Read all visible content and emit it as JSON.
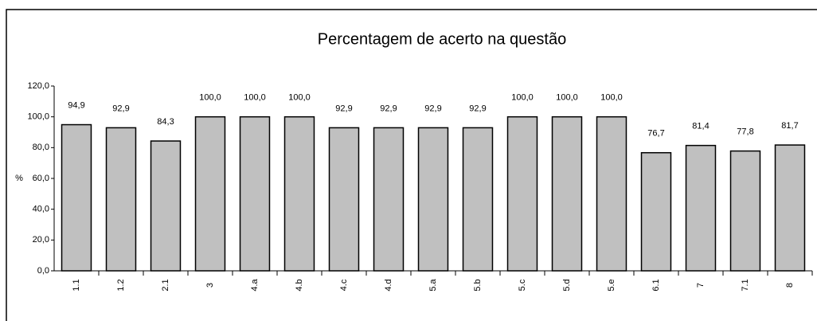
{
  "chart_data": {
    "type": "bar",
    "title": "Percentagem de acerto na questão",
    "ylabel": "%",
    "categories": [
      "1.1",
      "1.2",
      "2.1",
      "3",
      "4.a",
      "4.b",
      "4.c",
      "4.d",
      "5.a",
      "5.b",
      "5.c",
      "5.d",
      "5.e",
      "6.1",
      "7",
      "7.1",
      "8"
    ],
    "values": [
      94.9,
      92.9,
      84.3,
      100,
      100,
      100,
      92.9,
      92.9,
      92.9,
      92.9,
      100,
      100,
      100,
      76.7,
      81.4,
      77.8,
      81.7
    ],
    "value_labels": [
      "94,9",
      "92,9",
      "84,3",
      "100,0",
      "100,0",
      "100,0",
      "92,9",
      "92,9",
      "92,9",
      "92,9",
      "100,0",
      "100,0",
      "100,0",
      "76,7",
      "81,4",
      "77,8",
      "81,7"
    ],
    "color": "#c0c0c0",
    "ylim": [
      0,
      120
    ],
    "yticks": [
      {
        "value": 0,
        "label": "0,0"
      },
      {
        "value": 20,
        "label": "20,0"
      },
      {
        "value": 40,
        "label": "40,0"
      },
      {
        "value": 60,
        "label": "60,0"
      },
      {
        "value": 80,
        "label": "80,0"
      },
      {
        "value": 100,
        "label": "100,0"
      },
      {
        "value": 120,
        "label": "120,0"
      }
    ],
    "grid": false
  }
}
